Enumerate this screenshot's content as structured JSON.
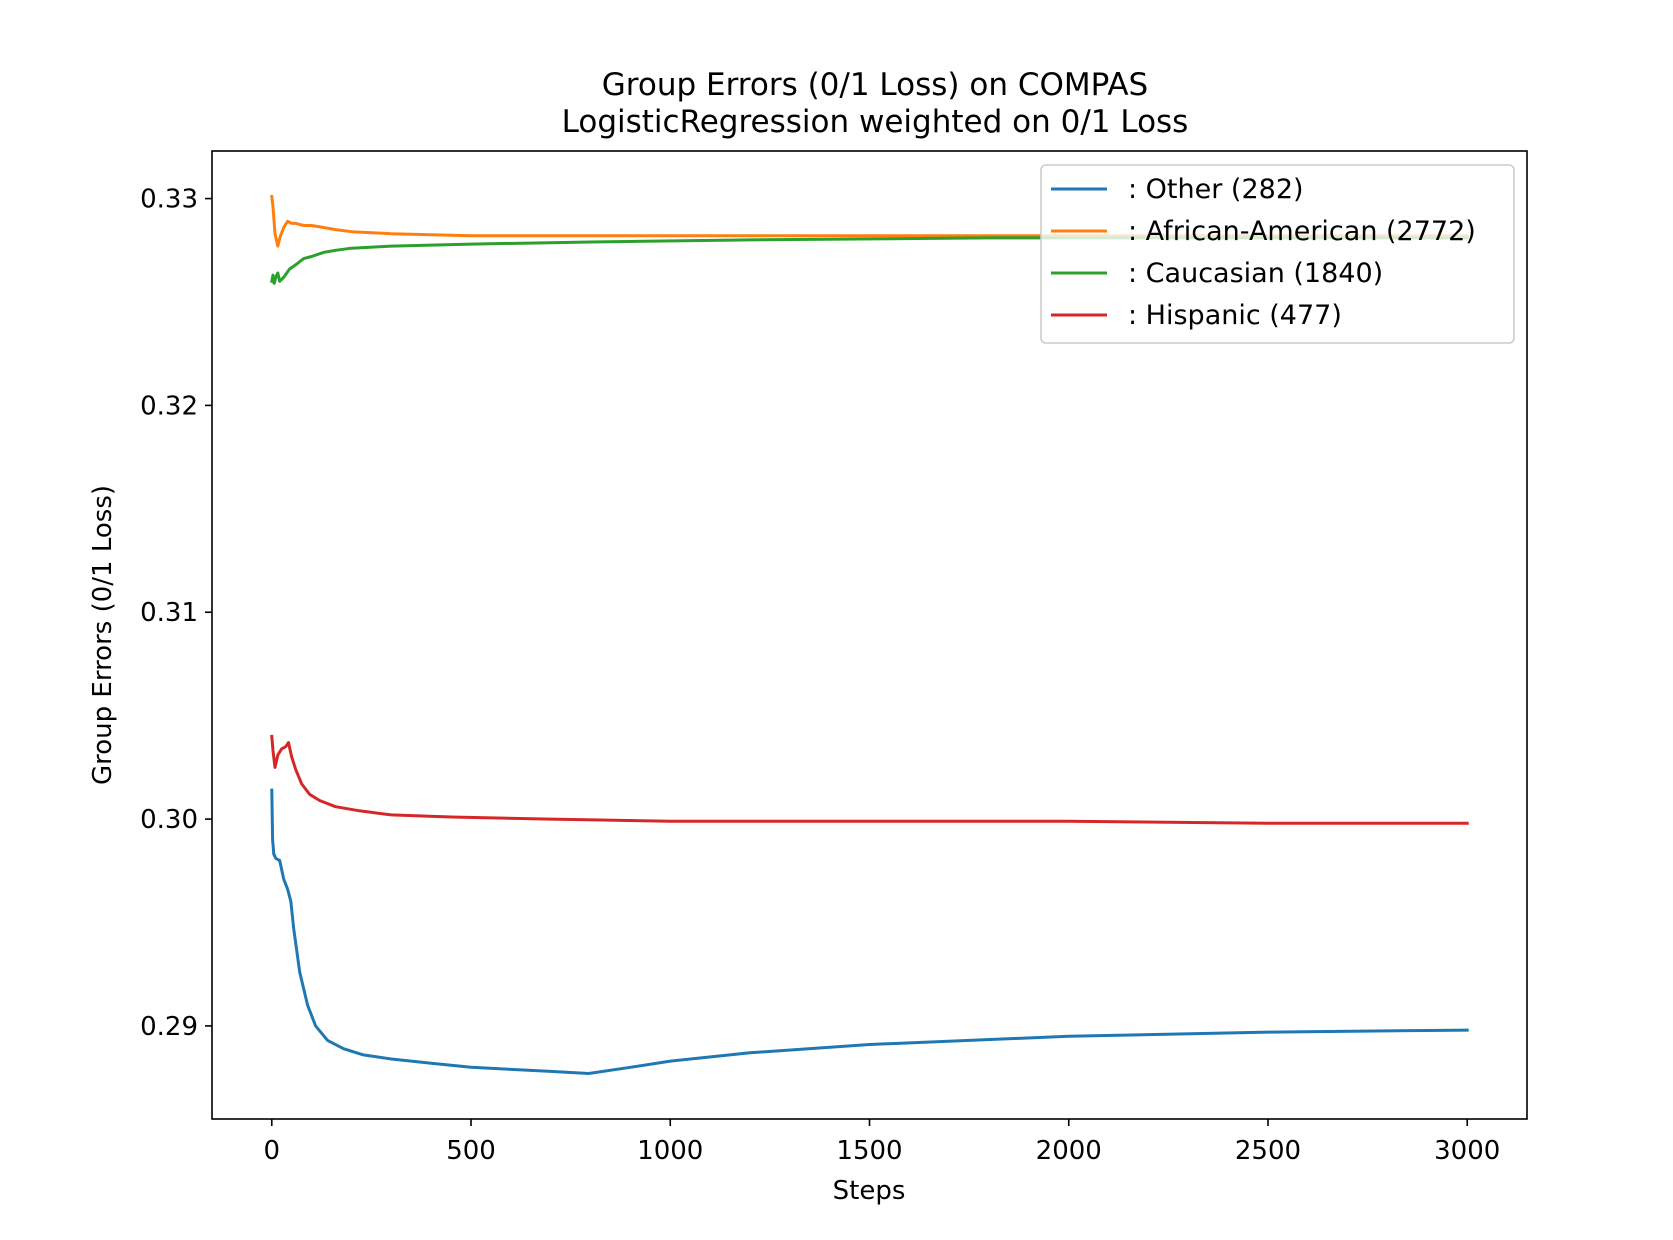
{
  "chart_data": {
    "type": "line",
    "title": "Group Errors (0/1 Loss) on COMPAS",
    "subtitle": "LogisticRegression weighted on 0/1 Loss",
    "xlabel": "Steps",
    "ylabel": "Group Errors (0/1 Loss)",
    "xlim": [
      -150,
      3150
    ],
    "ylim": [
      0.2855,
      0.3323
    ],
    "xticks": [
      0,
      500,
      1000,
      1500,
      2000,
      2500,
      3000
    ],
    "xtick_labels": [
      "0",
      "500",
      "1000",
      "1500",
      "2000",
      "2500",
      "3000"
    ],
    "yticks": [
      0.29,
      0.3,
      0.31,
      0.32,
      0.33
    ],
    "ytick_labels": [
      "0.29",
      "0.30",
      "0.31",
      "0.32",
      "0.33"
    ],
    "grid": false,
    "legend_position": "top-right",
    "series": [
      {
        "name": ": Other  (282)",
        "color": "#1f77b4",
        "x": [
          0,
          2,
          5,
          10,
          20,
          30,
          40,
          48,
          55,
          70,
          90,
          110,
          140,
          180,
          230,
          300,
          400,
          500,
          600,
          700,
          795,
          900,
          1000,
          1200,
          1500,
          2000,
          2500,
          3000
        ],
        "y": [
          0.3014,
          0.299,
          0.2983,
          0.2981,
          0.298,
          0.2971,
          0.2966,
          0.296,
          0.2947,
          0.2926,
          0.291,
          0.29,
          0.2893,
          0.2889,
          0.2886,
          0.2884,
          0.2882,
          0.288,
          0.2879,
          0.2878,
          0.2877,
          0.288,
          0.2883,
          0.2887,
          0.2891,
          0.2895,
          0.2897,
          0.2898
        ]
      },
      {
        "name": ": African-American  (2772)",
        "color": "#ff7f0e",
        "x": [
          0,
          3,
          8,
          15,
          22,
          30,
          40,
          50,
          60,
          80,
          100,
          130,
          160,
          200,
          300,
          500,
          800,
          1200,
          1800,
          2500,
          3000
        ],
        "y": [
          0.3301,
          0.3296,
          0.3283,
          0.3277,
          0.3282,
          0.3286,
          0.3289,
          0.3288,
          0.3288,
          0.3287,
          0.3287,
          0.3286,
          0.3285,
          0.3284,
          0.3283,
          0.3282,
          0.3282,
          0.3282,
          0.3282,
          0.3282,
          0.3282
        ]
      },
      {
        "name": ": Caucasian  (1840)",
        "color": "#2ca02c",
        "x": [
          0,
          3,
          6,
          10,
          15,
          20,
          30,
          45,
          60,
          80,
          100,
          130,
          160,
          200,
          300,
          500,
          800,
          1200,
          1800,
          2500,
          3000
        ],
        "y": [
          0.326,
          0.3263,
          0.3259,
          0.3262,
          0.3264,
          0.326,
          0.3262,
          0.3266,
          0.3268,
          0.3271,
          0.3272,
          0.3274,
          0.3275,
          0.3276,
          0.3277,
          0.3278,
          0.3279,
          0.328,
          0.3281,
          0.3281,
          0.3281
        ]
      },
      {
        "name": ": Hispanic  (477)",
        "color": "#d62728",
        "x": [
          0,
          3,
          8,
          15,
          25,
          35,
          42,
          50,
          60,
          75,
          95,
          120,
          160,
          220,
          300,
          450,
          700,
          1000,
          1500,
          2000,
          2500,
          3000
        ],
        "y": [
          0.304,
          0.3033,
          0.3025,
          0.3031,
          0.3034,
          0.3035,
          0.3037,
          0.303,
          0.3024,
          0.3017,
          0.3012,
          0.3009,
          0.3006,
          0.3004,
          0.3002,
          0.3001,
          0.3,
          0.2999,
          0.2999,
          0.2999,
          0.2998,
          0.2998
        ]
      }
    ]
  }
}
